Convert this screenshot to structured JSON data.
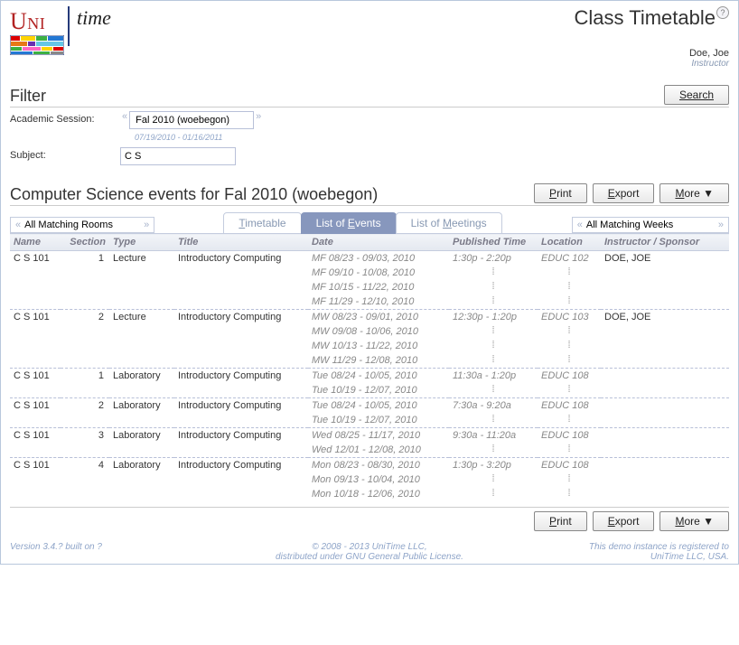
{
  "logo": {
    "uni": "Uni",
    "time": "time"
  },
  "page_title": "Class Timetable",
  "user": {
    "name": "Doe, Joe",
    "role": "Instructor"
  },
  "filter": {
    "heading": "Filter",
    "search_label": "Search",
    "session_label": "Academic Session:",
    "session_value": "Fal 2010 (woebegon)",
    "session_dates": "07/19/2010 - 01/16/2011",
    "subject_label": "Subject:",
    "subject_value": "C S"
  },
  "events_heading": "Computer Science events for Fal 2010 (woebegon)",
  "buttons": {
    "print": "Print",
    "export": "Export",
    "more": "More ▼"
  },
  "tabs": {
    "timetable": "Timetable",
    "list_events": "List of Events",
    "list_meetings": "List of Meetings"
  },
  "rooms_value": "All Matching Rooms",
  "weeks_value": "All Matching Weeks",
  "columns": {
    "name": "Name",
    "section": "Section",
    "type": "Type",
    "title": "Title",
    "date": "Date",
    "ptime": "Published Time",
    "location": "Location",
    "inst": "Instructor / Sponsor"
  },
  "rows": [
    {
      "name": "C S 101",
      "section": "1",
      "type": "Lecture",
      "title": "Introductory Computing",
      "time": "1:30p - 2:20p",
      "location": "EDUC 102",
      "instructor": "DOE, JOE",
      "dates": [
        "MF 08/23 - 09/03, 2010",
        "MF 09/10 - 10/08, 2010",
        "MF 10/15 - 11/22, 2010",
        "MF 11/29 - 12/10, 2010"
      ]
    },
    {
      "name": "C S 101",
      "section": "2",
      "type": "Lecture",
      "title": "Introductory Computing",
      "time": "12:30p - 1:20p",
      "location": "EDUC 103",
      "instructor": "DOE, JOE",
      "dates": [
        "MW 08/23 - 09/01, 2010",
        "MW 09/08 - 10/06, 2010",
        "MW 10/13 - 11/22, 2010",
        "MW 11/29 - 12/08, 2010"
      ]
    },
    {
      "name": "C S 101",
      "section": "1",
      "type": "Laboratory",
      "title": "Introductory Computing",
      "time": "11:30a - 1:20p",
      "location": "EDUC 108",
      "instructor": "",
      "dates": [
        "Tue 08/24 - 10/05, 2010",
        "Tue 10/19 - 12/07, 2010"
      ]
    },
    {
      "name": "C S 101",
      "section": "2",
      "type": "Laboratory",
      "title": "Introductory Computing",
      "time": "7:30a - 9:20a",
      "location": "EDUC 108",
      "instructor": "",
      "dates": [
        "Tue 08/24 - 10/05, 2010",
        "Tue 10/19 - 12/07, 2010"
      ]
    },
    {
      "name": "C S 101",
      "section": "3",
      "type": "Laboratory",
      "title": "Introductory Computing",
      "time": "9:30a - 11:20a",
      "location": "EDUC 108",
      "instructor": "",
      "dates": [
        "Wed 08/25 - 11/17, 2010",
        "Wed 12/01 - 12/08, 2010"
      ]
    },
    {
      "name": "C S 101",
      "section": "4",
      "type": "Laboratory",
      "title": "Introductory Computing",
      "time": "1:30p - 3:20p",
      "location": "EDUC 108",
      "instructor": "",
      "dates": [
        "Mon 08/23 - 08/30, 2010",
        "Mon 09/13 - 10/04, 2010",
        "Mon 10/18 - 12/06, 2010"
      ]
    }
  ],
  "footer": {
    "left": "Version 3.4.? built on ?",
    "mid1": "© 2008 - 2013 UniTime LLC,",
    "mid2": "distributed under GNU General Public License.",
    "right1": "This demo instance is registered to",
    "right2": "UniTime LLC, USA."
  }
}
